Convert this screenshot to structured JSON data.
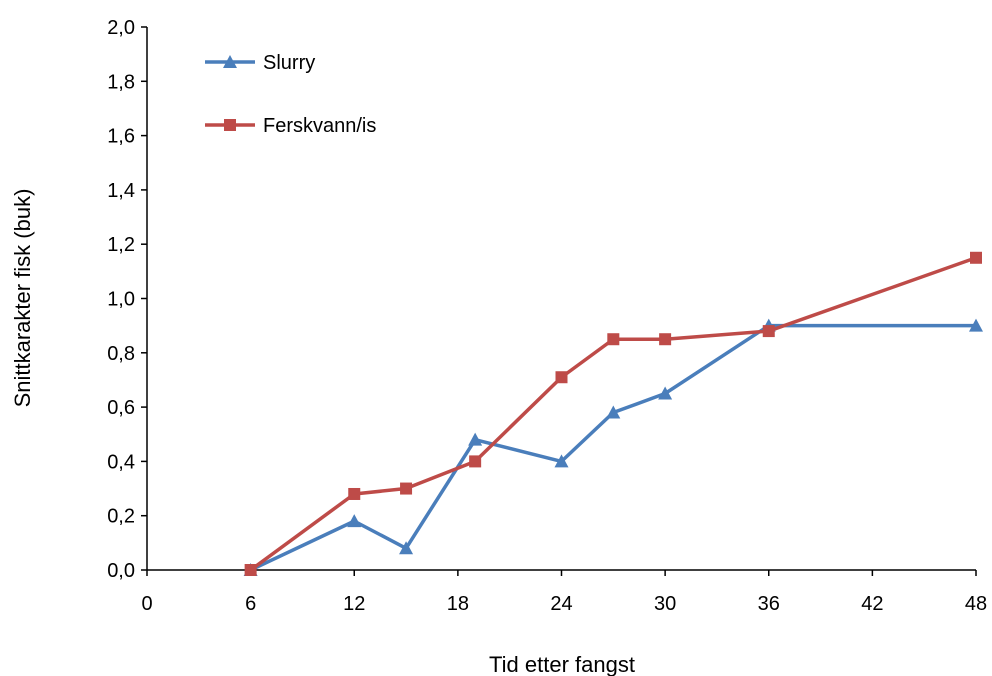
{
  "chart_data": {
    "type": "line",
    "xlabel": "Tid etter fangst",
    "ylabel": "Snittkarakter fisk (buk)",
    "xlim": [
      0,
      48
    ],
    "ylim": [
      0,
      2.0
    ],
    "x_ticks": [
      "0",
      "6",
      "12",
      "18",
      "24",
      "30",
      "36",
      "42",
      "48"
    ],
    "x_tick_values": [
      0,
      6,
      12,
      18,
      24,
      30,
      36,
      42,
      48
    ],
    "y_ticks": [
      "0,0",
      "0,2",
      "0,4",
      "0,6",
      "0,8",
      "1,0",
      "1,2",
      "1,4",
      "1,6",
      "1,8",
      "2,0"
    ],
    "y_tick_values": [
      0,
      0.2,
      0.4,
      0.6,
      0.8,
      1.0,
      1.2,
      1.4,
      1.6,
      1.8,
      2.0
    ],
    "grid": false,
    "legend_position": "top-left",
    "series": [
      {
        "name": "Slurry",
        "color": "#4a7ebb",
        "marker": "triangle",
        "x": [
          6,
          12,
          15,
          19,
          24,
          27,
          30,
          36,
          48
        ],
        "y": [
          0.0,
          0.18,
          0.08,
          0.48,
          0.4,
          0.58,
          0.65,
          0.9,
          0.9
        ]
      },
      {
        "name": "Ferskvann/is",
        "color": "#be4b48",
        "marker": "square",
        "x": [
          6,
          12,
          15,
          19,
          24,
          27,
          30,
          36,
          48
        ],
        "y": [
          0.0,
          0.28,
          0.3,
          0.4,
          0.71,
          0.85,
          0.85,
          0.88,
          1.15
        ]
      }
    ]
  }
}
